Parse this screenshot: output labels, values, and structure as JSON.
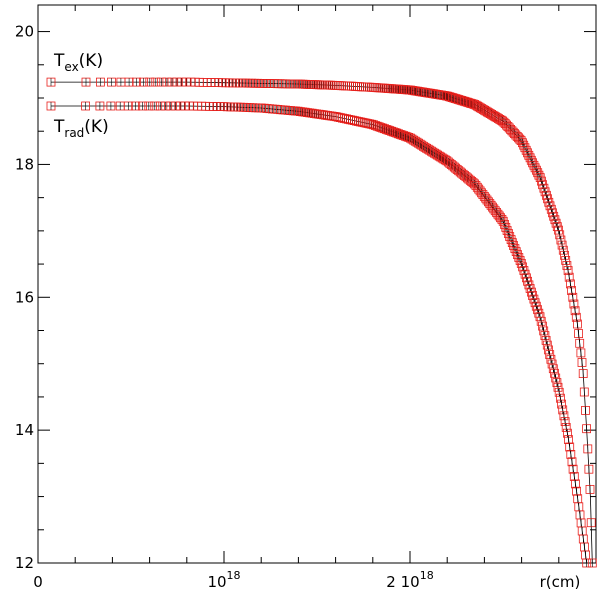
{
  "chart_data": {
    "type": "scatter",
    "title": "",
    "xlabel": "r(cm)",
    "ylabel": "",
    "xlim": [
      0,
      3e+18
    ],
    "ylim": [
      12,
      20.4
    ],
    "grid": false,
    "x_ticks": [
      {
        "value": 0,
        "label": "0"
      },
      {
        "value": 1e+18,
        "label": "10",
        "sup": "18"
      },
      {
        "value": 2e+18,
        "label": "2 10",
        "sup": "18"
      }
    ],
    "y_ticks": [
      {
        "value": 12,
        "label": "12"
      },
      {
        "value": 14,
        "label": "14"
      },
      {
        "value": 16,
        "label": "16"
      },
      {
        "value": 18,
        "label": "18"
      },
      {
        "value": 20,
        "label": "20"
      }
    ],
    "series": [
      {
        "name": "T_ex(K)",
        "label_main": "T",
        "label_sub": "ex",
        "label_tail": "(K)",
        "color": "#e8201c",
        "line_color": "#000000",
        "x": [
          7e+16,
          2e+17,
          4e+17,
          6e+17,
          8e+17,
          1e+18,
          1.2e+18,
          1.4e+18,
          1.6e+18,
          1.8e+18,
          2e+18,
          2.2e+18,
          2.35e+18,
          2.5e+18,
          2.6e+18,
          2.7e+18,
          2.8e+18,
          2.85e+18,
          2.9e+18,
          2.93e+18,
          2.95e+18,
          2.97e+18,
          2.98e+18
        ],
        "y": [
          19.24,
          19.24,
          19.24,
          19.24,
          19.24,
          19.23,
          19.22,
          19.21,
          19.19,
          19.16,
          19.12,
          19.03,
          18.9,
          18.65,
          18.35,
          17.8,
          17.0,
          16.4,
          15.6,
          14.9,
          14.0,
          13.0,
          12.0
        ]
      },
      {
        "name": "T_rad(K)",
        "label_main": "T",
        "label_sub": "rad",
        "label_tail": "(K)",
        "color": "#e8201c",
        "line_color": "#000000",
        "x": [
          7e+16,
          2e+17,
          4e+17,
          6e+17,
          8e+17,
          1e+18,
          1.2e+18,
          1.4e+18,
          1.6e+18,
          1.8e+18,
          2e+18,
          2.2e+18,
          2.35e+18,
          2.5e+18,
          2.6e+18,
          2.7e+18,
          2.8e+18,
          2.85e+18,
          2.9e+18,
          2.93e+18,
          2.95e+18
        ],
        "y": [
          18.88,
          18.88,
          18.88,
          18.88,
          18.88,
          18.87,
          18.85,
          18.8,
          18.72,
          18.6,
          18.4,
          18.05,
          17.7,
          17.15,
          16.5,
          15.7,
          14.6,
          13.9,
          13.0,
          12.4,
          12.0
        ]
      }
    ]
  }
}
